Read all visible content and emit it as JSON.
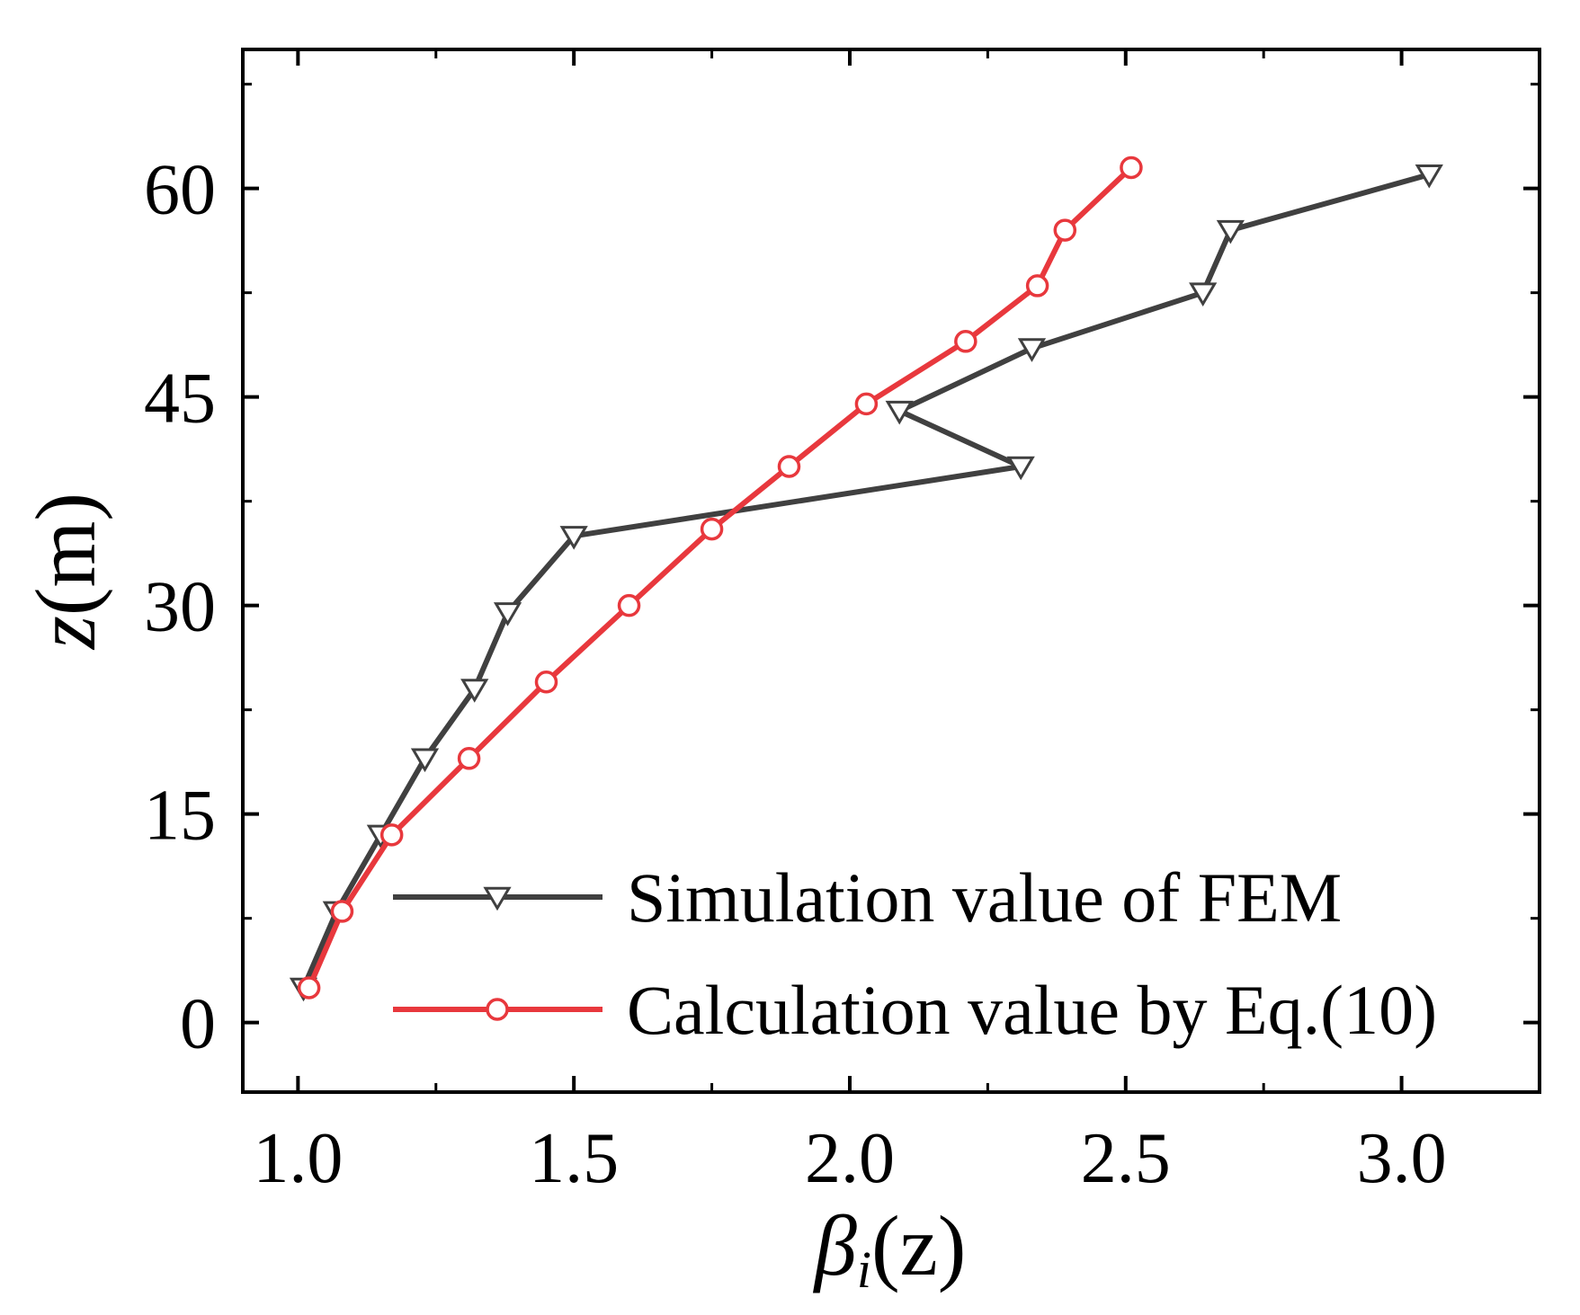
{
  "chart_data": {
    "type": "line",
    "title": "",
    "xlabel": "βi(z)",
    "xlabel_main": "β",
    "xlabel_sub": "i",
    "xlabel_arg": "(z)",
    "ylabel": "z(m)",
    "ylabel_var": "z",
    "ylabel_unit": "(m)",
    "xlim": [
      0.9,
      3.25
    ],
    "ylim": [
      -5,
      70
    ],
    "xticks": [
      1.0,
      1.5,
      2.0,
      2.5,
      3.0
    ],
    "xtick_labels": [
      "1.0",
      "1.5",
      "2.0",
      "2.5",
      "3.0"
    ],
    "yticks": [
      0,
      15,
      30,
      45,
      60
    ],
    "ytick_labels": [
      "0",
      "15",
      "30",
      "45",
      "60"
    ],
    "legend_position": "bottom-right",
    "series": [
      {
        "name": "Simulation value of FEM",
        "color": "#404040",
        "marker": "triangle-down",
        "x": [
          1.01,
          1.07,
          1.15,
          1.23,
          1.32,
          1.38,
          1.5,
          2.31,
          2.09,
          2.33,
          2.64,
          2.69,
          3.05
        ],
        "y": [
          2.5,
          8,
          13.5,
          19,
          24,
          29.5,
          35,
          40,
          44,
          48.5,
          52.5,
          57,
          61
        ]
      },
      {
        "name": "Calculation value by Eq.(10)",
        "color": "#e8383d",
        "marker": "circle",
        "x": [
          1.02,
          1.08,
          1.17,
          1.31,
          1.45,
          1.6,
          1.75,
          1.89,
          2.03,
          2.21,
          2.34,
          2.39,
          2.51
        ],
        "y": [
          2.5,
          8,
          13.5,
          19,
          24.5,
          30,
          35.5,
          40,
          44.5,
          49,
          53,
          57,
          61.5
        ]
      }
    ]
  }
}
